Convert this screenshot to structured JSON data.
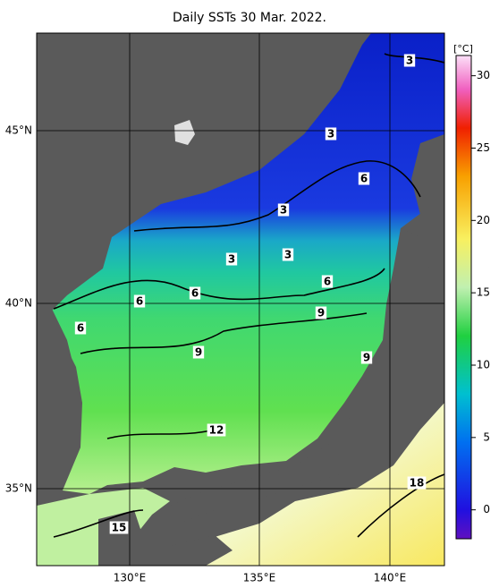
{
  "map": {
    "title": "Daily SSTs 30 Mar. 2022.",
    "lat_labels": [
      "45°N",
      "40°N",
      "35°N"
    ],
    "lon_labels": [
      "130°E",
      "135°E",
      "140°E"
    ],
    "colorbar": {
      "unit": "[°C]",
      "range": [
        -2,
        31.4
      ],
      "ticks": [
        0,
        5,
        10,
        15,
        20,
        25,
        30
      ]
    },
    "contour_labels": [
      "3",
      "3",
      "6",
      "3",
      "3",
      "3",
      "6",
      "6",
      "6",
      "6",
      "9",
      "9",
      "9",
      "12",
      "18",
      "15"
    ]
  }
}
